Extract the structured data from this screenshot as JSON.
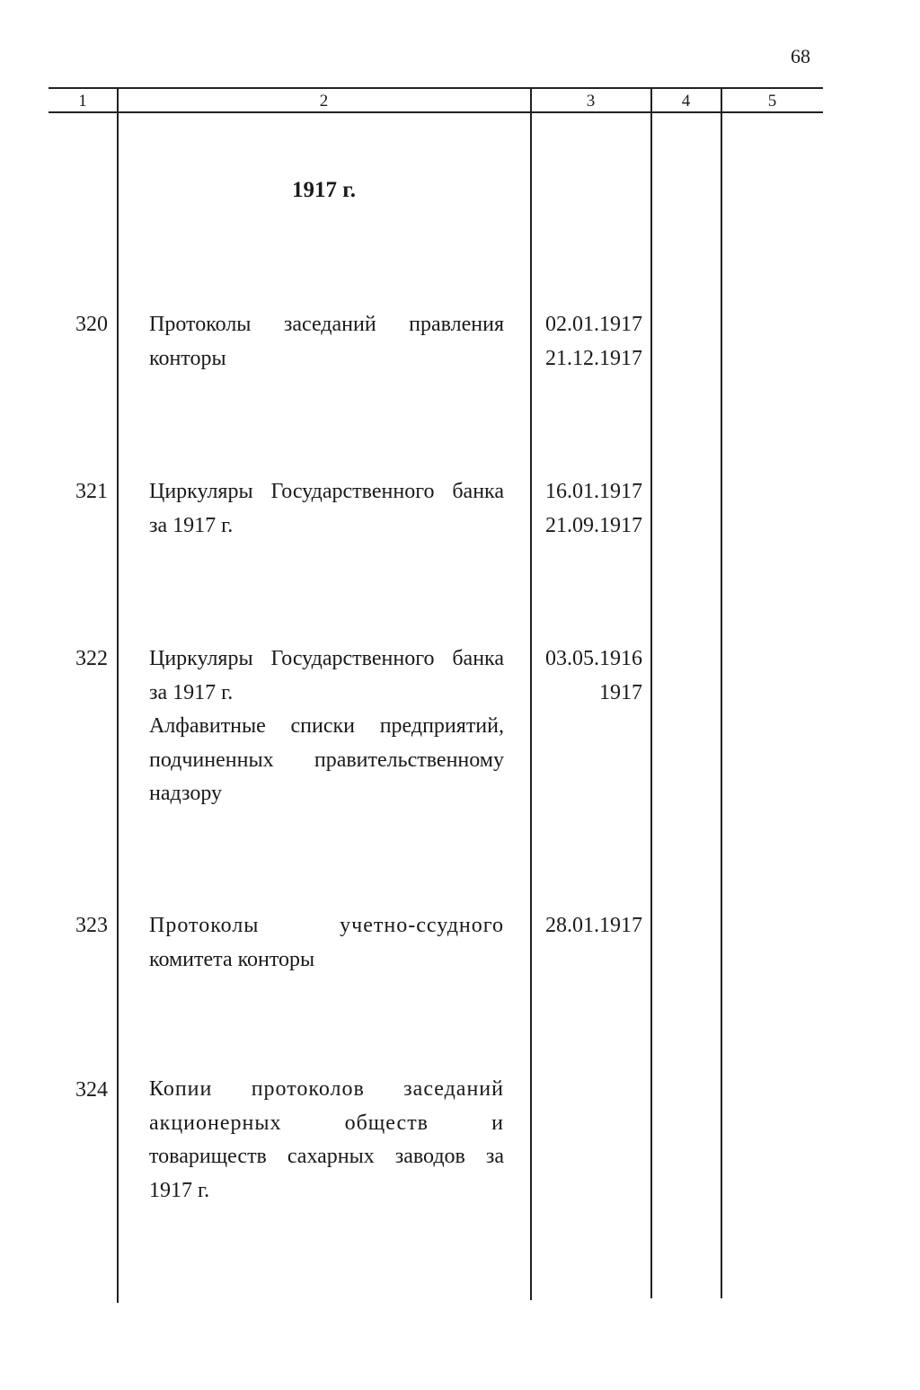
{
  "page_number": "68",
  "header": [
    "1",
    "2",
    "3",
    "4",
    "5"
  ],
  "section_title": "1917 г.",
  "rows": [
    {
      "number": "320",
      "lines": [
        "Протоколы заседаний правления",
        "конторы"
      ],
      "dates": [
        "02.01.1917",
        "21.12.1917"
      ]
    },
    {
      "number": "321",
      "lines": [
        "Циркуляры Государственного банка",
        "за 1917 г."
      ],
      "dates": [
        "16.01.1917",
        "21.09.1917"
      ]
    },
    {
      "number": "322",
      "lines": [
        "Циркуляры Государственного банка",
        "за 1917 г.",
        "Алфавитные списки предприятий,",
        "подчиненных правительственному",
        "надзору"
      ],
      "dates": [
        "03.05.1916",
        "1917"
      ]
    },
    {
      "number": "323",
      "lines": [
        "Протоколы учетно-ссудного",
        "комитета конторы"
      ],
      "dates": [
        "28.01.1917"
      ]
    },
    {
      "number": "324",
      "lines": [
        "Копии протоколов заседаний",
        "акционерных обществ и",
        "товариществ сахарных заводов за",
        "1917 г."
      ],
      "dates": []
    }
  ]
}
